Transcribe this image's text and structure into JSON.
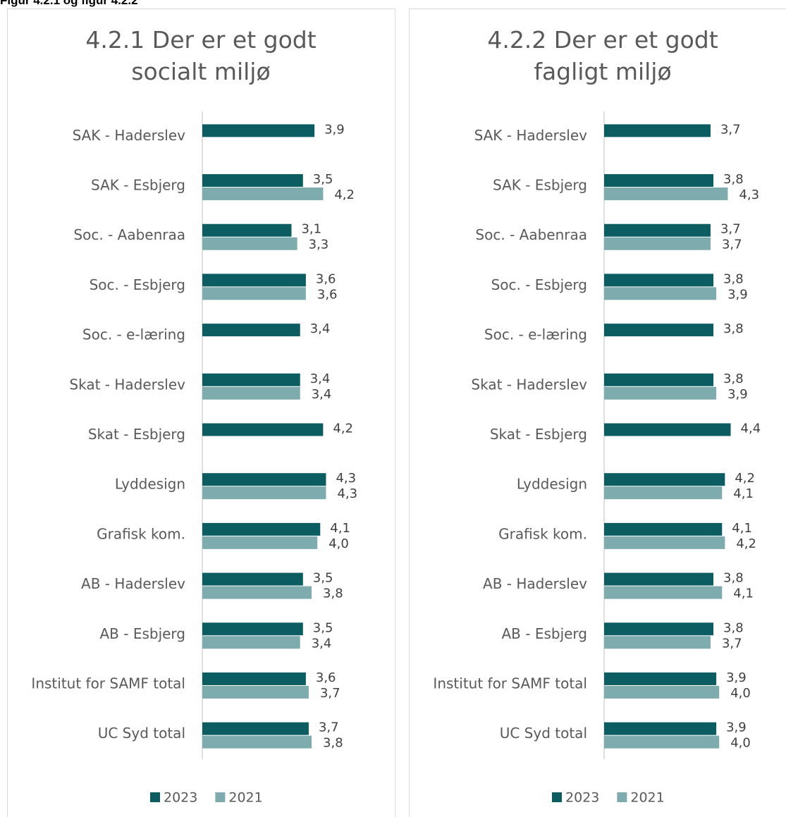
{
  "caption": "Figur 4.2.1 og figur 4.2.2",
  "chart_data": [
    {
      "type": "barh",
      "title": "4.2.1 Der er et godt socialt miljø",
      "categories": [
        "SAK - Haderslev",
        "SAK - Esbjerg",
        "Soc. - Aabenraa",
        "Soc. - Esbjerg",
        "Soc. - e-læring",
        "Skat - Haderslev",
        "Skat - Esbjerg",
        "Lyddesign",
        "Grafisk kom.",
        "AB - Haderslev",
        "AB - Esbjerg",
        "Institut for SAMF total",
        "UC Syd total"
      ],
      "series": [
        {
          "name": "2023",
          "color": "#0c5d62",
          "values": [
            3.9,
            3.5,
            3.1,
            3.6,
            3.4,
            3.4,
            4.2,
            4.3,
            4.1,
            3.5,
            3.5,
            3.6,
            3.7
          ],
          "value_labels": [
            "3,9",
            "3,5",
            "3,1",
            "3,6",
            "3,4",
            "3,4",
            "4,2",
            "4,3",
            "4,1",
            "3,5",
            "3,5",
            "3,6",
            "3,7"
          ]
        },
        {
          "name": "2021",
          "color": "#7eabad",
          "values": [
            null,
            4.2,
            3.3,
            3.6,
            null,
            3.4,
            null,
            4.3,
            4.0,
            3.8,
            3.4,
            3.7,
            3.8
          ],
          "value_labels": [
            null,
            "4,2",
            "3,3",
            "3,6",
            null,
            "3,4",
            null,
            "4,3",
            "4,0",
            "3,8",
            "3,4",
            "3,7",
            "3,8"
          ]
        }
      ],
      "xlim": [
        0,
        5
      ],
      "legend": "bottom"
    },
    {
      "type": "barh",
      "title": "4.2.2 Der er et godt fagligt miljø",
      "categories": [
        "SAK - Haderslev",
        "SAK - Esbjerg",
        "Soc. - Aabenraa",
        "Soc. - Esbjerg",
        "Soc. - e-læring",
        "Skat - Haderslev",
        "Skat - Esbjerg",
        "Lyddesign",
        "Grafisk kom.",
        "AB - Haderslev",
        "AB - Esbjerg",
        "Institut for SAMF total",
        "UC Syd total"
      ],
      "series": [
        {
          "name": "2023",
          "color": "#0c5d62",
          "values": [
            3.7,
            3.8,
            3.7,
            3.8,
            3.8,
            3.8,
            4.4,
            4.2,
            4.1,
            3.8,
            3.8,
            3.9,
            3.9
          ],
          "value_labels": [
            "3,7",
            "3,8",
            "3,7",
            "3,8",
            "3,8",
            "3,8",
            "4,4",
            "4,2",
            "4,1",
            "3,8",
            "3,8",
            "3,9",
            "3,9"
          ]
        },
        {
          "name": "2021",
          "color": "#7eabad",
          "values": [
            null,
            4.3,
            3.7,
            3.9,
            null,
            3.9,
            null,
            4.1,
            4.2,
            4.1,
            3.7,
            4.0,
            4.0
          ],
          "value_labels": [
            null,
            "4,3",
            "3,7",
            "3,9",
            null,
            "3,9",
            null,
            "4,1",
            "4,2",
            "4,1",
            "3,7",
            "4,0",
            "4,0"
          ]
        }
      ],
      "xlim": [
        0,
        5
      ],
      "legend": "bottom"
    }
  ]
}
